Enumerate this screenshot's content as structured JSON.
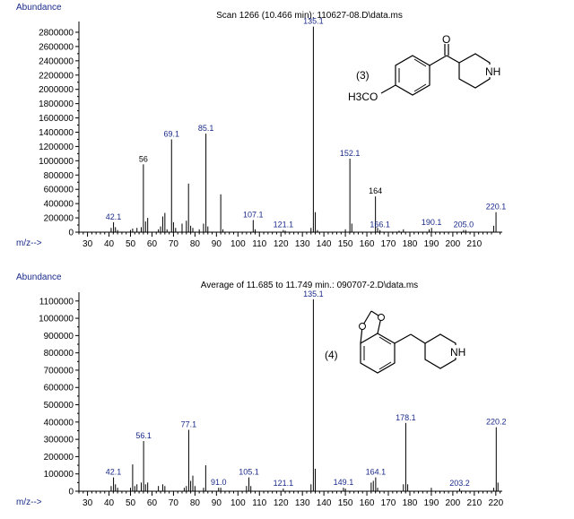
{
  "chart_data": [
    {
      "type": "bar",
      "title": "Scan 1266 (10.466 min): 110627-08.D\\data.ms",
      "ylabel": "Abundance",
      "xlabel": "m/z-->",
      "xlim": [
        26,
        223
      ],
      "ylim": [
        0,
        2900000
      ],
      "x_ticks": [
        30,
        40,
        50,
        60,
        70,
        80,
        90,
        100,
        110,
        120,
        130,
        140,
        150,
        160,
        170,
        180,
        190,
        200,
        210
      ],
      "y_ticks": [
        0,
        200000,
        400000,
        600000,
        800000,
        1000000,
        1200000,
        1400000,
        1600000,
        1800000,
        2000000,
        2200000,
        2400000,
        2600000,
        2800000
      ],
      "peaks": [
        {
          "x": 41,
          "y": 60000
        },
        {
          "x": 42.1,
          "y": 140000
        },
        {
          "x": 43,
          "y": 70000
        },
        {
          "x": 44,
          "y": 30000
        },
        {
          "x": 50,
          "y": 30000
        },
        {
          "x": 51,
          "y": 50000
        },
        {
          "x": 53,
          "y": 60000
        },
        {
          "x": 55,
          "y": 70000
        },
        {
          "x": 56,
          "y": 950000
        },
        {
          "x": 57,
          "y": 150000
        },
        {
          "x": 58,
          "y": 200000
        },
        {
          "x": 63,
          "y": 40000
        },
        {
          "x": 64,
          "y": 80000
        },
        {
          "x": 65,
          "y": 220000
        },
        {
          "x": 66,
          "y": 270000
        },
        {
          "x": 67,
          "y": 40000
        },
        {
          "x": 69.1,
          "y": 1300000
        },
        {
          "x": 70,
          "y": 140000
        },
        {
          "x": 71,
          "y": 60000
        },
        {
          "x": 74,
          "y": 120000
        },
        {
          "x": 76,
          "y": 160000
        },
        {
          "x": 77,
          "y": 680000
        },
        {
          "x": 78,
          "y": 90000
        },
        {
          "x": 79,
          "y": 60000
        },
        {
          "x": 82,
          "y": 40000
        },
        {
          "x": 84,
          "y": 120000
        },
        {
          "x": 85.1,
          "y": 1380000
        },
        {
          "x": 86,
          "y": 80000
        },
        {
          "x": 92,
          "y": 530000
        },
        {
          "x": 93,
          "y": 40000
        },
        {
          "x": 107.1,
          "y": 170000
        },
        {
          "x": 108,
          "y": 40000
        },
        {
          "x": 121.1,
          "y": 30000
        },
        {
          "x": 122,
          "y": 20000
        },
        {
          "x": 134,
          "y": 60000
        },
        {
          "x": 135.1,
          "y": 2880000
        },
        {
          "x": 136,
          "y": 280000
        },
        {
          "x": 137,
          "y": 30000
        },
        {
          "x": 150,
          "y": 40000
        },
        {
          "x": 152.1,
          "y": 1030000
        },
        {
          "x": 153,
          "y": 120000
        },
        {
          "x": 164,
          "y": 500000
        },
        {
          "x": 165,
          "y": 60000
        },
        {
          "x": 166.1,
          "y": 30000
        },
        {
          "x": 175,
          "y": 20000
        },
        {
          "x": 177,
          "y": 40000
        },
        {
          "x": 189,
          "y": 40000
        },
        {
          "x": 190.1,
          "y": 60000
        },
        {
          "x": 205.0,
          "y": 30000
        },
        {
          "x": 206,
          "y": 30000
        },
        {
          "x": 219,
          "y": 90000
        },
        {
          "x": 220.1,
          "y": 280000
        }
      ],
      "labels": [
        {
          "text": "42.1",
          "x": 42.1,
          "y": 140000,
          "color": "blue"
        },
        {
          "text": "56",
          "x": 56,
          "y": 950000,
          "color": "black"
        },
        {
          "text": "69.1",
          "x": 69.1,
          "y": 1300000,
          "color": "blue"
        },
        {
          "text": "85.1",
          "x": 85.1,
          "y": 1380000,
          "color": "blue"
        },
        {
          "text": "107.1",
          "x": 107.1,
          "y": 170000,
          "color": "blue"
        },
        {
          "text": "121.1",
          "x": 121.1,
          "y": 30000,
          "color": "blue"
        },
        {
          "text": "135.1",
          "x": 135.1,
          "y": 2880000,
          "color": "blue"
        },
        {
          "text": "152.1",
          "x": 152.1,
          "y": 1030000,
          "color": "blue"
        },
        {
          "text": "164",
          "x": 164,
          "y": 500000,
          "color": "black"
        },
        {
          "text": "166.1",
          "x": 166.1,
          "y": 30000,
          "color": "blue"
        },
        {
          "text": "190.1",
          "x": 190.1,
          "y": 60000,
          "color": "blue"
        },
        {
          "text": "205.0",
          "x": 205.0,
          "y": 30000,
          "color": "blue"
        },
        {
          "text": "220.1",
          "x": 220.1,
          "y": 280000,
          "color": "blue"
        }
      ],
      "structure": {
        "compound_label": "(3)",
        "text_label": "H3CO",
        "nh_label": "NH",
        "carbonyl_o": "O"
      }
    },
    {
      "type": "bar",
      "title": "Average of 11.685 to 11.749 min.: 090707-2.D\\data.ms",
      "ylabel": "Abundance",
      "xlabel": "m/z-->",
      "xlim": [
        26,
        223
      ],
      "ylim": [
        0,
        1130000
      ],
      "x_ticks": [
        30,
        40,
        50,
        60,
        70,
        80,
        90,
        100,
        110,
        120,
        130,
        140,
        150,
        160,
        170,
        180,
        190,
        200,
        210,
        220
      ],
      "y_ticks": [
        0,
        100000,
        200000,
        300000,
        400000,
        500000,
        600000,
        700000,
        800000,
        900000,
        1000000,
        1100000
      ],
      "peaks": [
        {
          "x": 41,
          "y": 30000
        },
        {
          "x": 42.1,
          "y": 80000
        },
        {
          "x": 43,
          "y": 40000
        },
        {
          "x": 44,
          "y": 20000
        },
        {
          "x": 50,
          "y": 20000
        },
        {
          "x": 51,
          "y": 155000
        },
        {
          "x": 52,
          "y": 30000
        },
        {
          "x": 53,
          "y": 40000
        },
        {
          "x": 55,
          "y": 50000
        },
        {
          "x": 56.1,
          "y": 290000
        },
        {
          "x": 57,
          "y": 40000
        },
        {
          "x": 58,
          "y": 50000
        },
        {
          "x": 63,
          "y": 30000
        },
        {
          "x": 65,
          "y": 40000
        },
        {
          "x": 66,
          "y": 30000
        },
        {
          "x": 75,
          "y": 20000
        },
        {
          "x": 76,
          "y": 30000
        },
        {
          "x": 77.1,
          "y": 355000
        },
        {
          "x": 78,
          "y": 60000
        },
        {
          "x": 79,
          "y": 90000
        },
        {
          "x": 80,
          "y": 30000
        },
        {
          "x": 84,
          "y": 20000
        },
        {
          "x": 85,
          "y": 150000
        },
        {
          "x": 91.0,
          "y": 20000
        },
        {
          "x": 92,
          "y": 20000
        },
        {
          "x": 104,
          "y": 30000
        },
        {
          "x": 105.1,
          "y": 80000
        },
        {
          "x": 106,
          "y": 30000
        },
        {
          "x": 121.1,
          "y": 15000
        },
        {
          "x": 134,
          "y": 40000
        },
        {
          "x": 135.1,
          "y": 1110000
        },
        {
          "x": 136,
          "y": 130000
        },
        {
          "x": 149.1,
          "y": 20000
        },
        {
          "x": 150,
          "y": 15000
        },
        {
          "x": 162,
          "y": 50000
        },
        {
          "x": 163,
          "y": 60000
        },
        {
          "x": 164.1,
          "y": 80000
        },
        {
          "x": 165,
          "y": 20000
        },
        {
          "x": 177,
          "y": 40000
        },
        {
          "x": 178.1,
          "y": 395000
        },
        {
          "x": 179,
          "y": 40000
        },
        {
          "x": 190,
          "y": 20000
        },
        {
          "x": 203.2,
          "y": 15000
        },
        {
          "x": 219,
          "y": 20000
        },
        {
          "x": 220.2,
          "y": 370000
        },
        {
          "x": 221,
          "y": 50000
        }
      ],
      "labels": [
        {
          "text": "42.1",
          "x": 42.1,
          "y": 80000,
          "color": "blue"
        },
        {
          "text": "56.1",
          "x": 56.1,
          "y": 290000,
          "color": "blue"
        },
        {
          "text": "77.1",
          "x": 77.1,
          "y": 355000,
          "color": "blue"
        },
        {
          "text": "91.0",
          "x": 91.0,
          "y": 20000,
          "color": "blue"
        },
        {
          "text": "105.1",
          "x": 105.1,
          "y": 80000,
          "color": "blue"
        },
        {
          "text": "121.1",
          "x": 121.1,
          "y": 15000,
          "color": "blue"
        },
        {
          "text": "135.1",
          "x": 135.1,
          "y": 1110000,
          "color": "blue"
        },
        {
          "text": "149.1",
          "x": 149.1,
          "y": 20000,
          "color": "blue"
        },
        {
          "text": "164.1",
          "x": 164.1,
          "y": 80000,
          "color": "blue"
        },
        {
          "text": "178.1",
          "x": 178.1,
          "y": 395000,
          "color": "blue"
        },
        {
          "text": "203.2",
          "x": 203.2,
          "y": 15000,
          "color": "blue"
        },
        {
          "text": "220.2",
          "x": 220.2,
          "y": 370000,
          "color": "blue"
        }
      ],
      "structure": {
        "compound_label": "(4)",
        "nh_label": "NH"
      }
    }
  ]
}
